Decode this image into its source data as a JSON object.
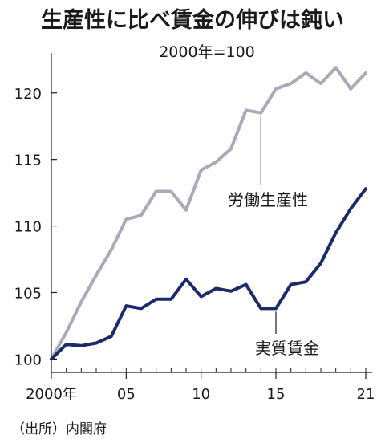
{
  "chart_data": {
    "type": "line",
    "title": "生産性に比べ賃金の伸びは鈍い",
    "subtitle": "2000年=100",
    "source": "（出所）内閣府",
    "x": [
      2000,
      2001,
      2002,
      2003,
      2004,
      2005,
      2006,
      2007,
      2008,
      2009,
      2010,
      2011,
      2012,
      2013,
      2014,
      2015,
      2016,
      2017,
      2018,
      2019,
      2020,
      2021
    ],
    "x_ticks": [
      {
        "value": 2000,
        "label": "2000年"
      },
      {
        "value": 2005,
        "label": "05"
      },
      {
        "value": 2010,
        "label": "10"
      },
      {
        "value": 2015,
        "label": "15"
      },
      {
        "value": 2021,
        "label": "21"
      }
    ],
    "y_ticks": [
      100,
      105,
      110,
      115,
      120
    ],
    "ylim": [
      99,
      123
    ],
    "xlim": [
      2000,
      2021
    ],
    "grid": false,
    "series": [
      {
        "name": "労働生産性",
        "color": "#a9a9b9",
        "values": [
          100.0,
          102.0,
          104.3,
          106.3,
          108.2,
          110.5,
          110.8,
          112.6,
          112.6,
          111.2,
          114.2,
          114.8,
          115.8,
          118.7,
          118.5,
          120.3,
          120.7,
          121.5,
          120.7,
          121.9,
          120.3,
          121.5
        ]
      },
      {
        "name": "実質賃金",
        "color": "#1b2a6b",
        "values": [
          100.0,
          101.1,
          101.0,
          101.2,
          101.7,
          104.0,
          103.8,
          104.5,
          104.5,
          106.0,
          104.7,
          105.3,
          105.1,
          105.6,
          103.8,
          103.8,
          105.6,
          105.8,
          107.2,
          109.5,
          111.3,
          112.8
        ]
      }
    ]
  }
}
